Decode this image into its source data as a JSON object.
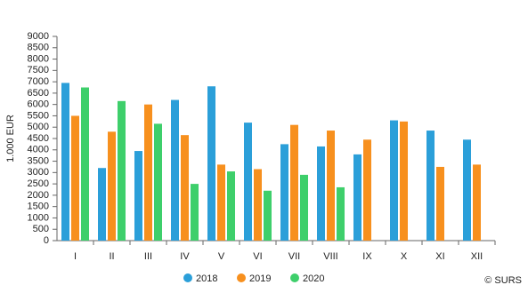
{
  "chart_data": {
    "type": "bar",
    "y_label": "1.000 EUR",
    "annotation": "© SURS",
    "categories": [
      "I",
      "II",
      "III",
      "IV",
      "V",
      "VI",
      "VII",
      "VIII",
      "IX",
      "X",
      "XI",
      "XII"
    ],
    "series": [
      {
        "name": "2018",
        "color": "#2b9fd9",
        "values": [
          6950,
          3200,
          3950,
          6200,
          6800,
          5200,
          4250,
          4150,
          3800,
          5300,
          4850,
          4450
        ]
      },
      {
        "name": "2019",
        "color": "#f7901e",
        "values": [
          5500,
          4800,
          6000,
          4650,
          3350,
          3150,
          5100,
          4850,
          4450,
          5250,
          3250,
          3350
        ]
      },
      {
        "name": "2020",
        "color": "#3ecf6b",
        "values": [
          6750,
          6150,
          5150,
          2500,
          3050,
          2200,
          2900,
          2350,
          null,
          null,
          null,
          null
        ]
      }
    ],
    "ylim": [
      0,
      9000
    ],
    "yticks": [
      0,
      500,
      1000,
      1500,
      2000,
      2500,
      3000,
      3500,
      4000,
      4500,
      5000,
      5500,
      6000,
      6500,
      7000,
      7500,
      8000,
      8500,
      9000
    ],
    "grid": false,
    "legend": "bottom"
  }
}
